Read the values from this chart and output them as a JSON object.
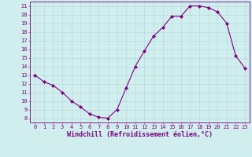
{
  "x": [
    0,
    1,
    2,
    3,
    4,
    5,
    6,
    7,
    8,
    9,
    10,
    11,
    12,
    13,
    14,
    15,
    16,
    17,
    18,
    19,
    20,
    21,
    22,
    23
  ],
  "y": [
    13.0,
    12.2,
    11.8,
    11.0,
    10.0,
    9.3,
    8.5,
    8.1,
    8.0,
    9.0,
    11.5,
    14.0,
    15.8,
    17.5,
    18.5,
    19.8,
    19.8,
    21.0,
    21.0,
    20.8,
    20.3,
    19.0,
    15.2,
    13.8
  ],
  "line_color": "#800080",
  "marker": "D",
  "marker_size": 2.0,
  "bg_color": "#d0eeee",
  "grid_color": "#b0d8d8",
  "ylabel_ticks": [
    8,
    9,
    10,
    11,
    12,
    13,
    14,
    15,
    16,
    17,
    18,
    19,
    20,
    21
  ],
  "ylim": [
    7.5,
    21.5
  ],
  "xlim": [
    -0.5,
    23.5
  ],
  "xticks": [
    0,
    1,
    2,
    3,
    4,
    5,
    6,
    7,
    8,
    9,
    10,
    11,
    12,
    13,
    14,
    15,
    16,
    17,
    18,
    19,
    20,
    21,
    22,
    23
  ],
  "tick_color": "#800080",
  "label_color": "#800080",
  "tick_fontsize": 5.0,
  "xlabel_fontsize": 6.0,
  "xlabel": "Windchill (Refroidissement éolien,°C)"
}
